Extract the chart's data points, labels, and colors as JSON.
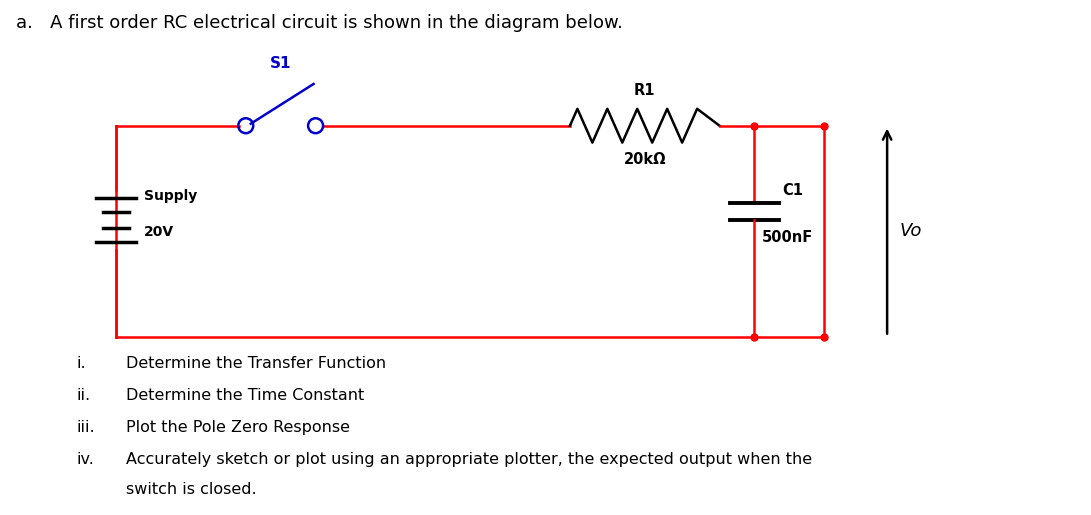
{
  "title_text": "a.   A first order RC electrical circuit is shown in the diagram below.",
  "title_color": "#000000",
  "title_fontsize": 13,
  "circuit_color": "#FF0000",
  "switch_color": "#0000CC",
  "switch_label": "S1",
  "switch_label_color": "#0000CC",
  "resistor_label": "R1",
  "resistor_value": "20kΩ",
  "capacitor_label": "C1",
  "capacitor_value": "500nF",
  "supply_label": "Supply",
  "supply_value": "20V",
  "output_label": "Vo",
  "list_roman": [
    "i.",
    "ii.",
    "iii.",
    "iv."
  ],
  "list_texts": [
    "Determine the Transfer Function",
    "Determine the Time Constant",
    "Plot the Pole Zero Response",
    "Accurately sketch or plot using an appropriate plotter, the expected output when the"
  ],
  "list_text_cont": "switch is closed.",
  "bg_color": "#FFFFFF"
}
